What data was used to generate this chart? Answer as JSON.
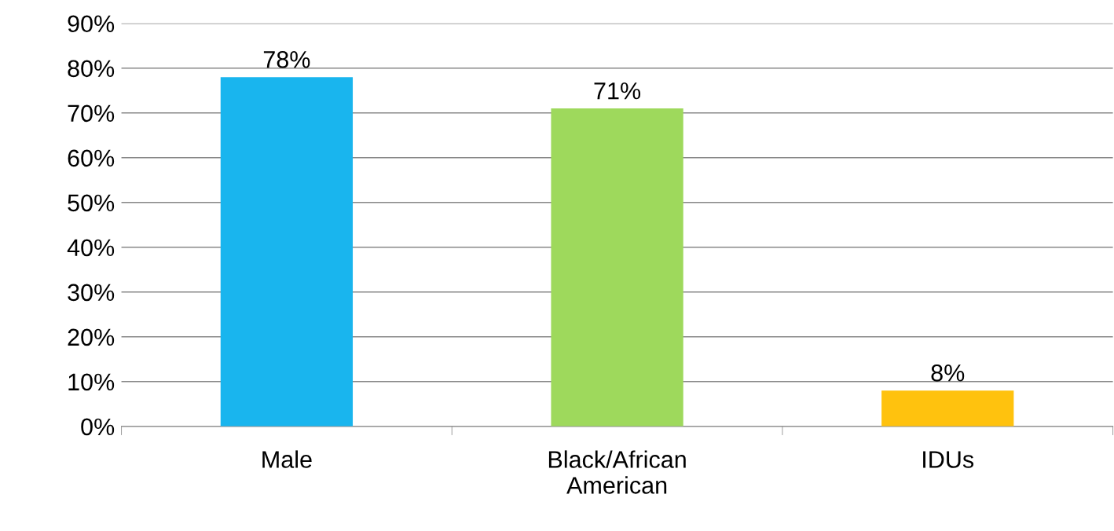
{
  "chart_data": {
    "type": "bar",
    "categories": [
      "Male",
      "Black/African American",
      "IDUs"
    ],
    "values": [
      78,
      71,
      8
    ],
    "colors": [
      "#19b5ee",
      "#9ed95c",
      "#ffc20e"
    ],
    "ylim": [
      0,
      90
    ],
    "yticks": [
      {
        "value": 0,
        "label": "0%"
      },
      {
        "value": 10,
        "label": "10%"
      },
      {
        "value": 20,
        "label": "20%"
      },
      {
        "value": 30,
        "label": "30%"
      },
      {
        "value": 40,
        "label": "40%"
      },
      {
        "value": 50,
        "label": "50%"
      },
      {
        "value": 60,
        "label": "60%"
      },
      {
        "value": 70,
        "label": "70%"
      },
      {
        "value": 80,
        "label": "80%"
      },
      {
        "value": 90,
        "label": "90%"
      }
    ],
    "value_labels": [
      "78%",
      "71%",
      "8%"
    ],
    "grid": "y",
    "legend": false
  }
}
